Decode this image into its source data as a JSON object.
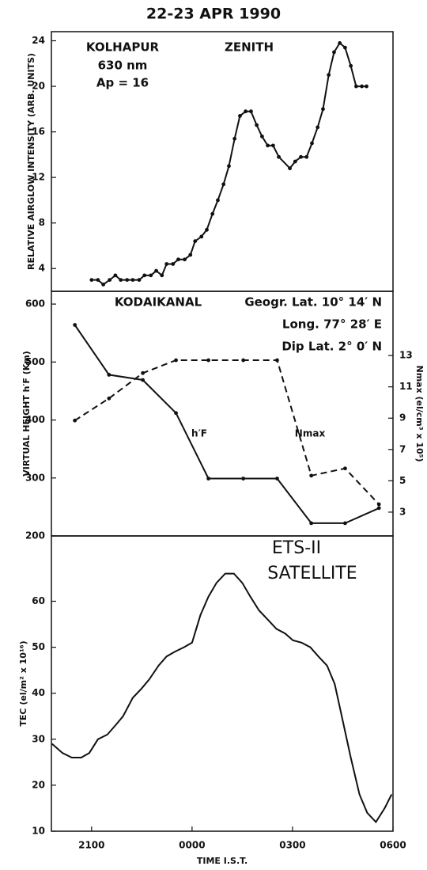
{
  "title": "22-23 APR 1990",
  "x_label": "TIME I.S.T.",
  "chart_data": [
    {
      "type": "line",
      "y_label": "RELATIVE AIRGLOW INTENSITY (ARB. UNITS)",
      "annotations": [
        "KOLHAPUR",
        "ZENITH",
        "630 nm",
        "Ap = 16"
      ],
      "xlim": [
        19.8,
        30
      ],
      "ylim": [
        2,
        24.8
      ],
      "yticks": [
        4,
        8,
        12,
        16,
        20,
        24
      ],
      "x": [
        21.0,
        21.19,
        21.35,
        21.54,
        21.71,
        21.87,
        22.06,
        22.23,
        22.42,
        22.58,
        22.77,
        22.93,
        23.1,
        23.24,
        23.43,
        23.59,
        23.78,
        23.95,
        24.09,
        24.28,
        24.44,
        24.61,
        24.77,
        24.94,
        25.1,
        25.27,
        25.43,
        25.6,
        25.76,
        25.93,
        26.09,
        26.26,
        26.42,
        26.59,
        26.92,
        27.08,
        27.25,
        27.42,
        27.58,
        27.75,
        27.91,
        28.08,
        28.24,
        28.41,
        28.57,
        28.74,
        28.9,
        29.07,
        29.21
      ],
      "series": [
        {
          "color": "#111111",
          "linestyle": "solid",
          "markers": true,
          "values": [
            3.0,
            3.0,
            2.6,
            3.0,
            3.4,
            3.0,
            3.0,
            3.0,
            3.0,
            3.4,
            3.4,
            3.8,
            3.4,
            4.4,
            4.4,
            4.8,
            4.8,
            5.2,
            6.4,
            6.8,
            7.4,
            8.8,
            10,
            11.4,
            13,
            15.4,
            17.4,
            17.8,
            17.8,
            16.6,
            15.6,
            14.8,
            14.8,
            13.8,
            12.8,
            13.4,
            13.8,
            13.8,
            15,
            16.4,
            18,
            21,
            23,
            23.8,
            23.4,
            21.8,
            20,
            20,
            20
          ]
        }
      ]
    },
    {
      "type": "line",
      "y_label": "VIRTUAL HEIGHT h′F (Km)",
      "y2_label": "Nmax (el/cm³ x 10⁵)",
      "annotations": [
        "KODAIKANAL",
        "Geogr. Lat. 10° 14′ N",
        "Long. 77° 28′ E",
        "Dip Lat. 2° 0′ N"
      ],
      "xlim": [
        19.8,
        30
      ],
      "ylim": [
        200,
        622
      ],
      "yticks": [
        200,
        300,
        400,
        500,
        600
      ],
      "y2lim": [
        1.48,
        17.1
      ],
      "y2ticks": [
        3,
        5,
        7,
        9,
        11,
        13
      ],
      "x": [
        20.5,
        21.52,
        22.53,
        23.52,
        24.49,
        25.53,
        26.54,
        27.56,
        28.57,
        29.58
      ],
      "series": [
        {
          "name": "h′F",
          "color": "#111111",
          "linestyle": "solid",
          "markers": true,
          "values": [
            564,
            478,
            469,
            412,
            299,
            299,
            299,
            222,
            222,
            248
          ]
        },
        {
          "name": "Nmax",
          "color": "#111111",
          "linestyle": "dashed",
          "markers": true,
          "axis": "y2",
          "values": [
            8.85,
            10.26,
            11.88,
            12.7,
            12.7,
            12.7,
            12.7,
            5.33,
            5.79,
            3.5
          ]
        }
      ]
    },
    {
      "type": "line",
      "y_label": "TEC (el/m² x 10¹⁶)",
      "annotations": [
        "ETS-II",
        "SATELLITE"
      ],
      "xlim": [
        19.8,
        30
      ],
      "ylim": [
        10,
        74.2
      ],
      "yticks": [
        10,
        20,
        30,
        40,
        50,
        60
      ],
      "xticks": [
        {
          "value": 21,
          "label": "2100"
        },
        {
          "value": 24,
          "label": "0000"
        },
        {
          "value": 27,
          "label": "0300"
        },
        {
          "value": 30,
          "label": "0600"
        }
      ],
      "x": [
        19.82,
        20.13,
        20.41,
        20.69,
        20.93,
        21.19,
        21.47,
        21.71,
        21.94,
        22.23,
        22.49,
        22.72,
        23.0,
        23.24,
        23.48,
        23.76,
        24.0,
        24.25,
        24.49,
        24.73,
        24.99,
        25.25,
        25.5,
        25.74,
        26.0,
        26.26,
        26.52,
        26.78,
        27.01,
        27.27,
        27.53,
        27.77,
        28.03,
        28.26,
        28.5,
        28.74,
        29.0,
        29.23,
        29.49,
        29.75,
        29.96
      ],
      "series": [
        {
          "color": "#111111",
          "linestyle": "solid",
          "markers": false,
          "values": [
            29,
            27,
            26,
            26,
            27,
            30,
            31,
            33,
            35,
            39,
            41,
            43,
            46,
            48,
            49,
            50,
            51,
            57,
            61,
            64,
            66,
            66,
            64,
            61,
            58,
            56,
            54,
            53,
            51.5,
            51,
            50,
            48,
            46,
            42,
            34,
            26,
            18,
            14,
            12,
            15,
            18
          ]
        }
      ]
    }
  ]
}
